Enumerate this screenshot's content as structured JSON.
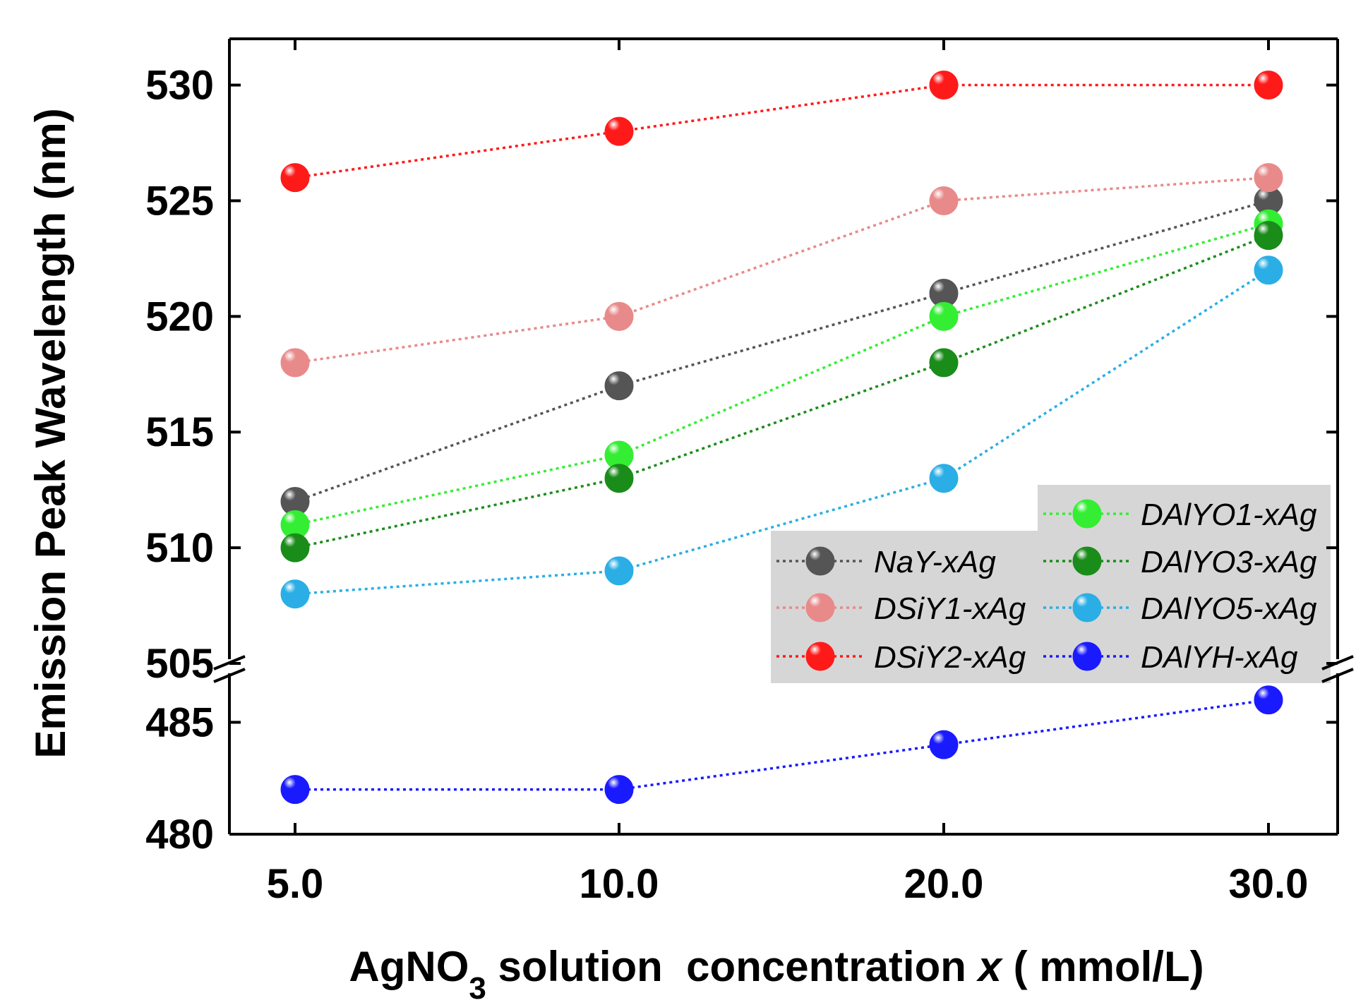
{
  "chart_data": {
    "type": "line",
    "x_categories": [
      "5.0",
      "10.0",
      "20.0",
      "30.0"
    ],
    "xlabel": {
      "prefix": "AgNO",
      "subscript": "3",
      "middle": " solution  concentration ",
      "variable": "x",
      "suffix": " ( mmol/L)"
    },
    "ylabel": "Emission Peak Wavelength (nm)",
    "axis_break": true,
    "ylim_upper": [
      505,
      532
    ],
    "ylim_lower": [
      480,
      487
    ],
    "yticks_upper": [
      "505",
      "510",
      "515",
      "520",
      "525",
      "530"
    ],
    "yticks_lower": [
      "480",
      "485"
    ],
    "legend_location": "lower-right",
    "series": [
      {
        "name": "NaY-xAg",
        "color": "#555555",
        "values": [
          512,
          517,
          521,
          525
        ]
      },
      {
        "name": "DSiY1-xAg",
        "color": "#E88A8A",
        "values": [
          518,
          520,
          525,
          526
        ]
      },
      {
        "name": "DSiY2-xAg",
        "color": "#FF1A1A",
        "values": [
          526,
          528,
          530,
          530
        ]
      },
      {
        "name": "DAlYO1-xAg",
        "color": "#33EE33",
        "values": [
          511,
          514,
          520,
          524
        ]
      },
      {
        "name": "DAlYO3-xAg",
        "color": "#1A8C1A",
        "values": [
          510,
          513,
          518,
          523.5
        ]
      },
      {
        "name": "DAlYO5-xAg",
        "color": "#2AAEE5",
        "values": [
          508,
          509,
          513,
          522
        ]
      },
      {
        "name": "DAlYH-xAg",
        "color": "#1A1AFF",
        "values": [
          482,
          482,
          484,
          486
        ]
      }
    ]
  }
}
